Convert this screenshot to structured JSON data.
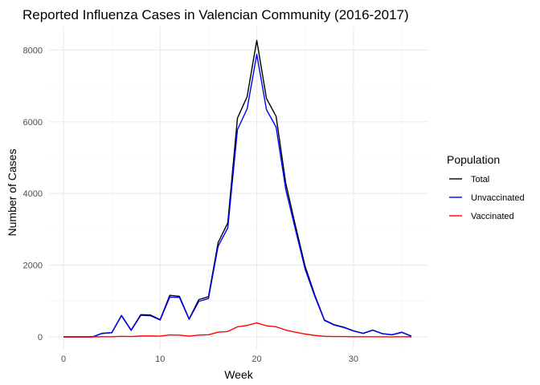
{
  "chart_data": {
    "type": "line",
    "title": "Reported Influenza Cases in Valencian Community (2016-2017)",
    "xlabel": "Week",
    "ylabel": "Number of Cases",
    "xlim": [
      0,
      36
    ],
    "ylim": [
      0,
      8300
    ],
    "x_ticks": [
      0,
      10,
      20,
      30
    ],
    "y_ticks": [
      0,
      2000,
      4000,
      6000,
      8000
    ],
    "grid": true,
    "legend": {
      "title": "Population",
      "position": "right"
    },
    "x": [
      0,
      1,
      2,
      3,
      4,
      5,
      6,
      7,
      8,
      9,
      10,
      11,
      12,
      13,
      14,
      15,
      16,
      17,
      18,
      19,
      20,
      21,
      22,
      23,
      24,
      25,
      26,
      27,
      28,
      29,
      30,
      31,
      32,
      33,
      34,
      35,
      36
    ],
    "series": [
      {
        "name": "Total",
        "color": "#000000",
        "values": [
          0,
          0,
          0,
          0,
          100,
          120,
          600,
          190,
          620,
          610,
          480,
          1160,
          1130,
          500,
          1040,
          1120,
          2630,
          3180,
          6100,
          6700,
          8270,
          6650,
          6150,
          4280,
          3100,
          1970,
          1170,
          470,
          340,
          270,
          170,
          100,
          190,
          90,
          60,
          130,
          20
        ]
      },
      {
        "name": "Unvaccinated",
        "color": "#0000ff",
        "values": [
          0,
          0,
          0,
          0,
          95,
          115,
          590,
          180,
          600,
          590,
          470,
          1110,
          1100,
          490,
          990,
          1070,
          2530,
          3040,
          5780,
          6360,
          7880,
          6340,
          5850,
          4110,
          2990,
          1890,
          1130,
          460,
          330,
          260,
          165,
          95,
          185,
          88,
          58,
          125,
          18
        ]
      },
      {
        "name": "Vaccinated",
        "color": "#ff0000",
        "values": [
          0,
          0,
          0,
          0,
          5,
          5,
          15,
          10,
          25,
          25,
          20,
          55,
          50,
          20,
          50,
          60,
          130,
          150,
          280,
          320,
          390,
          310,
          280,
          190,
          130,
          80,
          40,
          15,
          10,
          10,
          5,
          5,
          5,
          2,
          2,
          5,
          2
        ]
      }
    ]
  }
}
